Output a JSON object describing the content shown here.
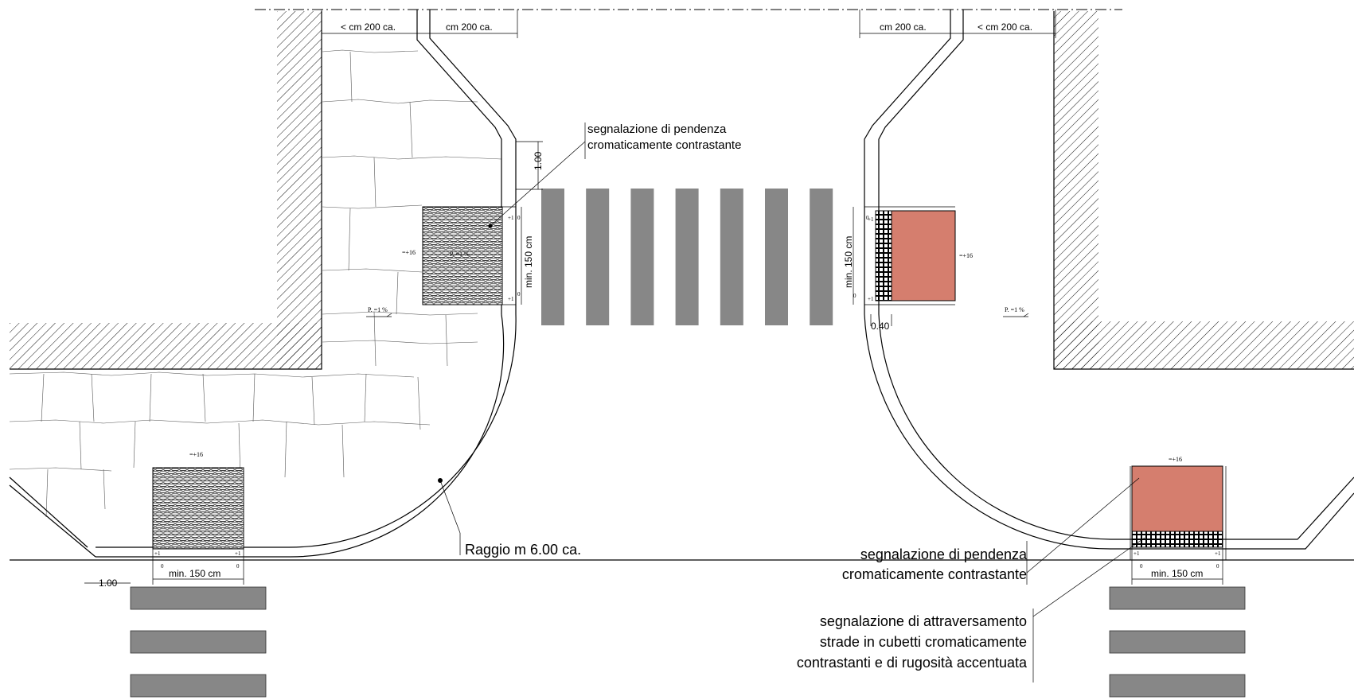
{
  "dimensions": {
    "top_left_outer": "< cm 200 ca.",
    "top_left_inner": "cm 200 ca.",
    "top_right_inner": "cm 200 ca.",
    "top_right_outer": "< cm 200 ca.",
    "vertical_offset": "1.00",
    "bottom_left_offset": "1.00",
    "crossing_width_left": "min. 150 cm",
    "crossing_width_right": "min. 150 cm",
    "bottom_left_ramp_width": "min. 150 cm",
    "bottom_right_ramp_width": "min. 150 cm",
    "band_width": "0.40"
  },
  "levels": {
    "left_platform": "=+16",
    "right_platform": "=+16",
    "bottom_left_platform": "=+16",
    "bottom_right_platform": "=+16",
    "plus_one": "+1",
    "zero": "0"
  },
  "slopes": {
    "left": "P. =1 %",
    "right": "P. =1 %"
  },
  "annotations": {
    "slope_signal_top": [
      "segnalazione di pendenza",
      "cromaticamente contrastante"
    ],
    "radius": "Raggio m 6.00 ca.",
    "slope_signal_bottom": [
      "segnalazione di pendenza",
      "cromaticamente contrastante"
    ],
    "crossing_signal": [
      "segnalazione di attraversamento",
      "strade in cubetti cromaticamente",
      "contrastanti e di rugosità accentuata"
    ]
  },
  "colors": {
    "zebra": "#878787",
    "terracotta": "#d57e6e",
    "hatch": "#000000"
  }
}
